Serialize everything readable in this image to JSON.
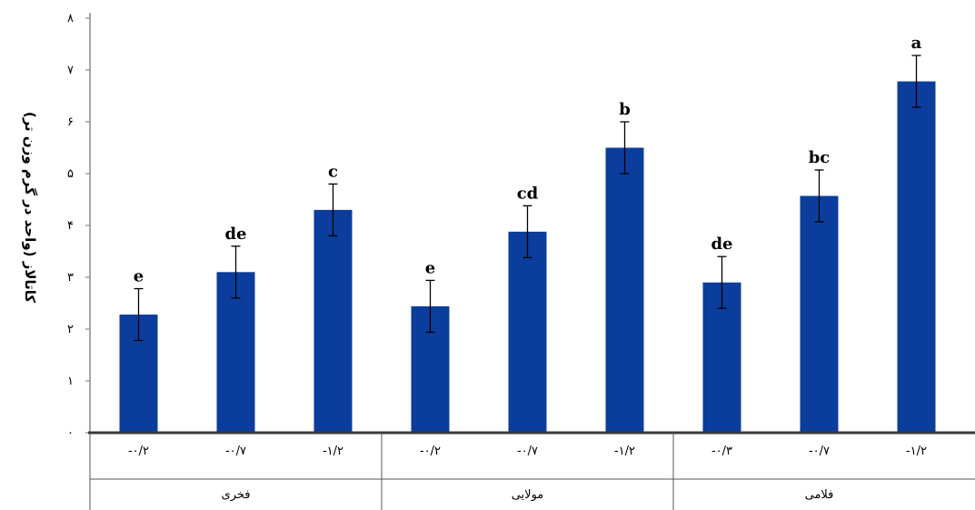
{
  "chart_data": {
    "type": "bar",
    "ylabel": "کاتالاز (واحد در گرم وزن تر)",
    "ylim": [
      0,
      8
    ],
    "yticks": [
      {
        "value": 0,
        "label": "۰"
      },
      {
        "value": 1,
        "label": "۱"
      },
      {
        "value": 2,
        "label": "۲"
      },
      {
        "value": 3,
        "label": "۳"
      },
      {
        "value": 4,
        "label": "۴"
      },
      {
        "value": 5,
        "label": "۵"
      },
      {
        "value": 6,
        "label": "۶"
      },
      {
        "value": 7,
        "label": "۷"
      },
      {
        "value": 8,
        "label": "۸"
      }
    ],
    "bar_color": "#0b3d9c",
    "groups": [
      {
        "name": "فخری",
        "size": 3
      },
      {
        "name": "مولایی",
        "size": 3
      },
      {
        "name": "فلامی",
        "size": 3
      }
    ],
    "categories": [
      "-۰/۲",
      "-۰/۷",
      "-۱/۲",
      "-۰/۲",
      "-۰/۷",
      "-۱/۲",
      "-۰/۳",
      "-۰/۷",
      "-۱/۲"
    ],
    "values": [
      2.28,
      3.1,
      4.3,
      2.44,
      3.88,
      5.5,
      2.9,
      4.57,
      6.78
    ],
    "errors": [
      0.5,
      0.5,
      0.5,
      0.5,
      0.5,
      0.5,
      0.5,
      0.5,
      0.5
    ],
    "letters": [
      "e",
      "de",
      "c",
      "e",
      "cd",
      "b",
      "de",
      "bc",
      "a"
    ]
  }
}
